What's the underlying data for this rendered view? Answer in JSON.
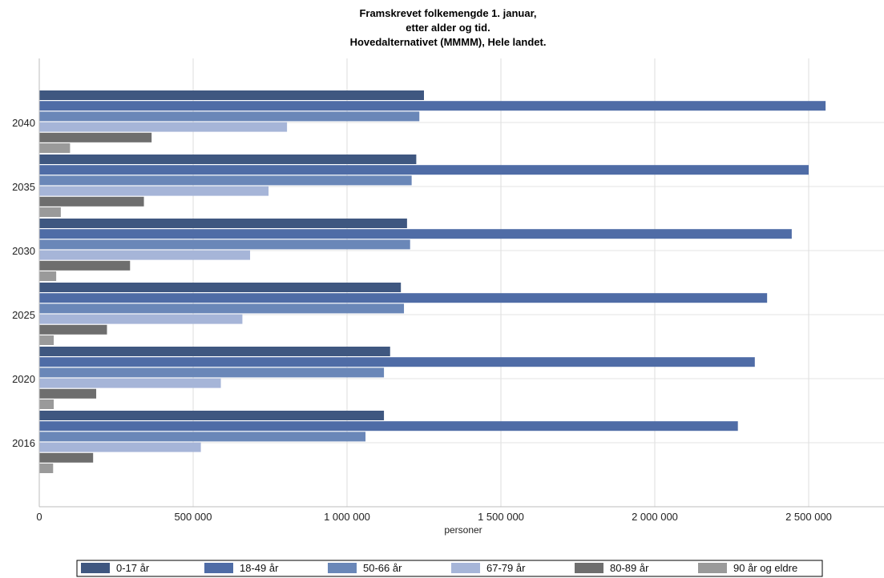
{
  "chart_data": {
    "type": "bar",
    "orientation": "horizontal",
    "title_lines": [
      "Framskrevet folkemengde 1. januar,",
      "etter alder og tid.",
      "Hovedalternativet (MMMM), Hele landet."
    ],
    "xlabel": "personer",
    "ylabel": "",
    "xlim": [
      0,
      2750000
    ],
    "xticks": [
      {
        "value": 0,
        "label": "0"
      },
      {
        "value": 500000,
        "label": "500 000"
      },
      {
        "value": 1000000,
        "label": "1 000 000"
      },
      {
        "value": 1500000,
        "label": "1 500 000"
      },
      {
        "value": 2000000,
        "label": "2 000 000"
      },
      {
        "value": 2500000,
        "label": "2 500 000"
      }
    ],
    "grid": true,
    "legend_position": "bottom",
    "categories": [
      "2040",
      "2035",
      "2030",
      "2025",
      "2020",
      "2016"
    ],
    "series": [
      {
        "name": "0-17 år",
        "color": "#3f5780",
        "values": [
          1250000,
          1225000,
          1195000,
          1175000,
          1140000,
          1120000
        ]
      },
      {
        "name": "18-49 år",
        "color": "#4f6ca6",
        "values": [
          2555000,
          2500000,
          2445000,
          2365000,
          2325000,
          2270000
        ]
      },
      {
        "name": "50-66 år",
        "color": "#6a87b8",
        "values": [
          1235000,
          1210000,
          1205000,
          1185000,
          1120000,
          1060000
        ]
      },
      {
        "name": "67-79 år",
        "color": "#a6b5d8",
        "values": [
          805000,
          745000,
          685000,
          660000,
          590000,
          525000
        ]
      },
      {
        "name": "80-89 år",
        "color": "#6e6e6e",
        "values": [
          365000,
          340000,
          295000,
          220000,
          185000,
          175000
        ]
      },
      {
        "name": "90 år og eldre",
        "color": "#9a9a9a",
        "values": [
          100000,
          70000,
          55000,
          47000,
          47000,
          45000
        ]
      }
    ]
  }
}
